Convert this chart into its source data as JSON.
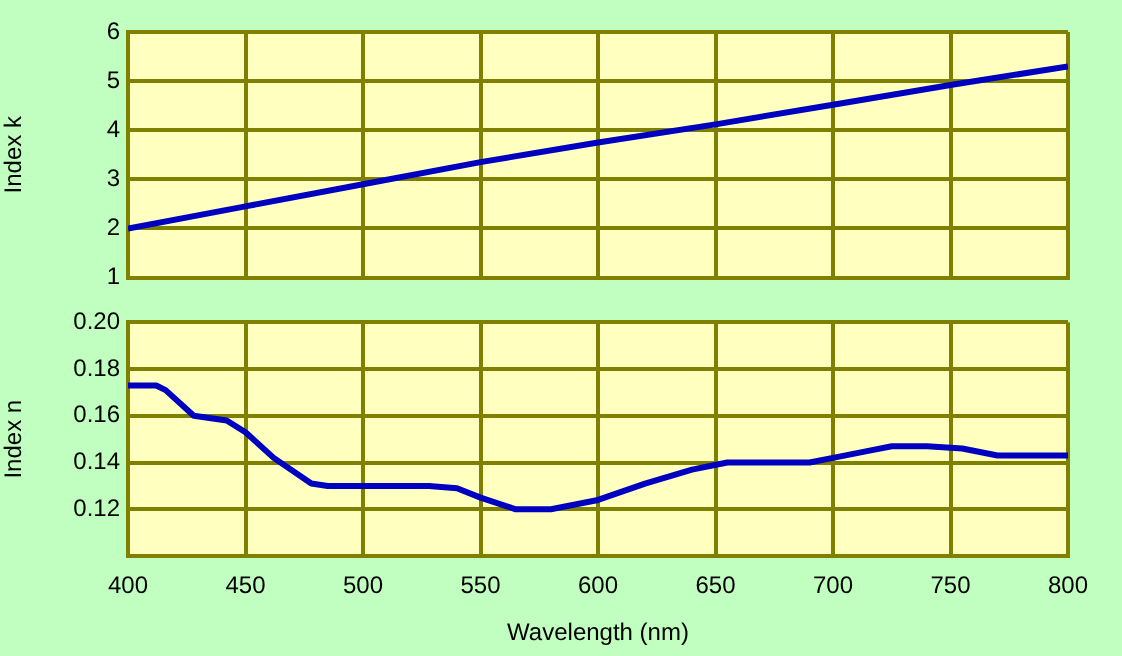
{
  "chart_data": [
    {
      "type": "line",
      "ylabel": "Index k",
      "xlim": [
        400,
        800
      ],
      "xticks": [
        400,
        450,
        500,
        550,
        600,
        650,
        700,
        750,
        800
      ],
      "ylim": [
        1,
        6
      ],
      "yticks": [
        1,
        2,
        3,
        4,
        5,
        6
      ],
      "grid": true,
      "tick_labels": "y",
      "x": [
        400,
        450,
        500,
        550,
        600,
        650,
        700,
        750,
        800
      ],
      "series": [
        {
          "color": "#0000c0",
          "values": [
            2.0,
            2.45,
            2.9,
            3.35,
            3.75,
            4.12,
            4.52,
            4.92,
            5.3
          ]
        }
      ]
    },
    {
      "type": "line",
      "xlabel": "Wavelength (nm)",
      "ylabel": "Index n",
      "xlim": [
        400,
        800
      ],
      "xticks": [
        400,
        450,
        500,
        550,
        600,
        650,
        700,
        750,
        800
      ],
      "ylim": [
        0.1,
        0.2
      ],
      "yticks": [
        0.12,
        0.14,
        0.16,
        0.18,
        {
          "value": 0.2,
          "label": "0.20"
        }
      ],
      "grid": true,
      "x": [
        400,
        412,
        416,
        428,
        442,
        450,
        462,
        478,
        485,
        528,
        540,
        550,
        565,
        580,
        600,
        620,
        640,
        655,
        690,
        700,
        715,
        725,
        740,
        755,
        770,
        800
      ],
      "series": [
        {
          "color": "#0000c0",
          "values": [
            0.173,
            0.173,
            0.171,
            0.16,
            0.158,
            0.153,
            0.142,
            0.131,
            0.13,
            0.13,
            0.129,
            0.125,
            0.12,
            0.12,
            0.124,
            0.131,
            0.137,
            0.14,
            0.14,
            0.142,
            0.145,
            0.147,
            0.147,
            0.146,
            0.143,
            0.143
          ]
        }
      ]
    }
  ]
}
